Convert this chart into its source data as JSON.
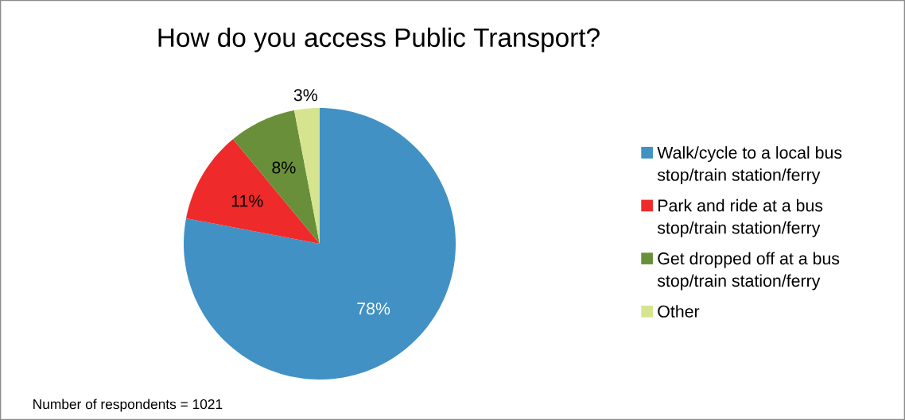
{
  "chart_data": {
    "type": "pie",
    "title": "How do you access Public Transport?",
    "categories": [
      "Walk/cycle to a local bus stop/train station/ferry",
      "Park and ride at a bus stop/train station/ferry",
      "Get dropped off at a bus stop/train station/ferry",
      "Other"
    ],
    "values": [
      78,
      11,
      8,
      3
    ],
    "colors": [
      "#4191c4",
      "#ee2a2a",
      "#6a8f3a",
      "#d6e48f"
    ],
    "value_labels": [
      "78%",
      "11%",
      "8%",
      "3%"
    ],
    "legend": "right",
    "annotations": [
      "Number of respondents = 1021"
    ]
  }
}
